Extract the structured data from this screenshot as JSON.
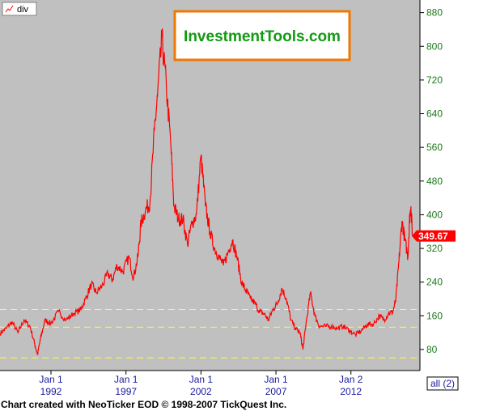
{
  "legend": {
    "label": "div"
  },
  "brand": {
    "text": "InvestmentTools.com"
  },
  "footer": {
    "text": "Chart created with NeoTicker EOD © 1998-2007 TickQuest Inc."
  },
  "range_button": {
    "label": "all (2)"
  },
  "last_price": {
    "label": "349.67",
    "value": 349.67
  },
  "colors": {
    "plot_bg": "#c0c0c0",
    "series": "#ff0000",
    "guide": "#ffff33",
    "brand_border": "#f07800",
    "brand_text": "#129a12",
    "y_tick": "#1a7a1a",
    "x_tick": "#1a1aa0"
  },
  "chart_data": {
    "type": "line",
    "y_ticks": [
      "880",
      "800",
      "720",
      "640",
      "560",
      "480",
      "400",
      "320",
      "240",
      "160",
      "80"
    ],
    "x_ticks": [
      {
        "top": "Jan 1",
        "bottom": "1992",
        "year": 1992
      },
      {
        "top": "Jan 1",
        "bottom": "1997",
        "year": 1997
      },
      {
        "top": "Jan 1",
        "bottom": "2002",
        "year": 2002
      },
      {
        "top": "Jan 1",
        "bottom": "2007",
        "year": 2007
      },
      {
        "top": "Jan 2",
        "bottom": "2012",
        "year": 2012
      }
    ],
    "ylim": [
      30,
      910
    ],
    "xlim": [
      1988.6,
      2016.6
    ],
    "grid": false,
    "reference_lines": [
      175,
      133,
      60
    ],
    "series": [
      {
        "x": [
          1988.6,
          1989.0,
          1989.4,
          1989.8,
          1990.2,
          1990.6,
          1990.9,
          1991.1,
          1991.3,
          1991.6,
          1992.0,
          1992.5,
          1993.0,
          1993.5,
          1994.0,
          1994.3,
          1994.7,
          1995.0,
          1995.4,
          1995.8,
          1996.1,
          1996.4,
          1996.8,
          1997.2,
          1997.5,
          1997.8,
          1998.0,
          1998.3,
          1998.6,
          1998.9,
          1999.1,
          1999.4,
          1999.7,
          2000.0,
          2000.2,
          2000.5,
          2000.8,
          2001.1,
          2001.4,
          2001.7,
          2002.0,
          2002.3,
          2002.6,
          2002.9,
          2003.2,
          2003.5,
          2003.8,
          2004.1,
          2004.4,
          2004.7,
          2005.0,
          2005.3,
          2005.6,
          2005.9,
          2006.2,
          2006.5,
          2006.8,
          2007.1,
          2007.4,
          2007.7,
          2008.0,
          2008.3,
          2008.6,
          2008.8,
          2009.0,
          2009.3,
          2009.6,
          2009.9,
          2010.3,
          2010.7,
          2011.1,
          2011.5,
          2011.9,
          2012.3,
          2012.7,
          2013.1,
          2013.5,
          2013.9,
          2014.2,
          2014.5,
          2014.8,
          2015.0,
          2015.2,
          2015.4,
          2015.6,
          2015.8,
          2015.9,
          2016.0,
          2016.1
        ],
        "y": [
          118,
          130,
          145,
          120,
          150,
          135,
          95,
          68,
          105,
          150,
          142,
          170,
          150,
          165,
          175,
          200,
          235,
          215,
          230,
          260,
          245,
          280,
          265,
          300,
          250,
          300,
          380,
          410,
          430,
          600,
          680,
          820,
          700,
          560,
          420,
          390,
          390,
          330,
          380,
          400,
          540,
          420,
          360,
          320,
          300,
          280,
          310,
          340,
          300,
          240,
          220,
          200,
          190,
          170,
          165,
          150,
          175,
          190,
          225,
          200,
          150,
          130,
          120,
          80,
          140,
          215,
          160,
          135,
          135,
          135,
          130,
          135,
          125,
          115,
          125,
          140,
          140,
          160,
          150,
          165,
          170,
          200,
          290,
          385,
          340,
          300,
          385,
          420,
          350
        ]
      }
    ]
  }
}
